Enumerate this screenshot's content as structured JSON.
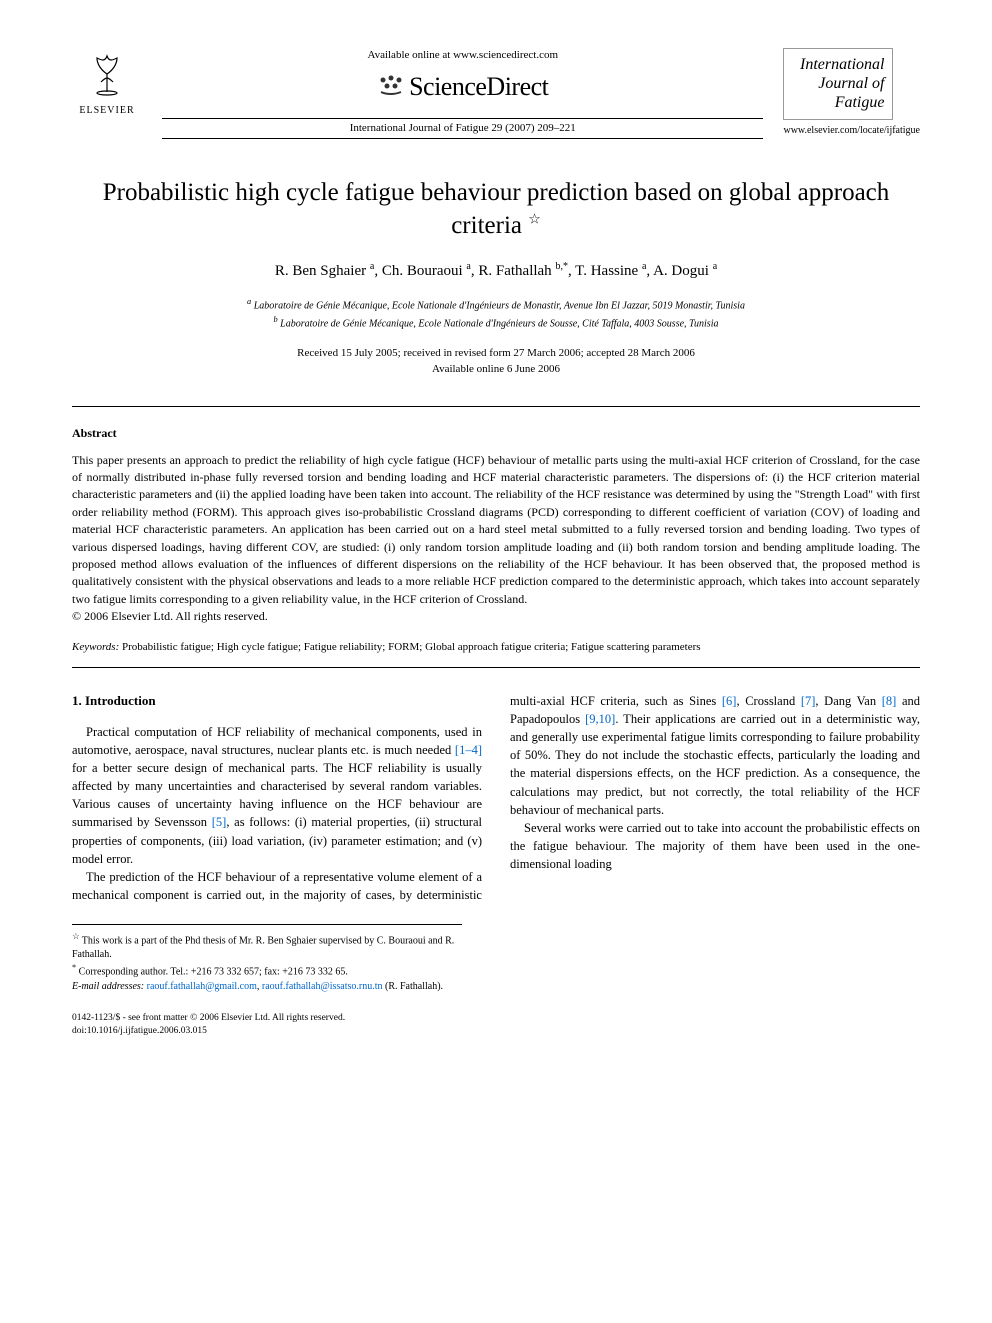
{
  "header": {
    "elsevier_label": "ELSEVIER",
    "available_online": "Available online at www.sciencedirect.com",
    "sciencedirect": "ScienceDirect",
    "journal_ref": "International Journal of Fatigue 29 (2007) 209–221",
    "journal_logo_lines": [
      "International",
      "Journal of",
      "Fatigue"
    ],
    "journal_url": "www.elsevier.com/locate/ijfatigue"
  },
  "title": "Probabilistic high cycle fatigue behaviour prediction based on global approach criteria",
  "title_note_marker": "☆",
  "authors_html": "R. Ben Sghaier <sup>a</sup>, Ch. Bouraoui <sup>a</sup>, R. Fathallah <sup>b,*</sup>, T. Hassine <sup>a</sup>, A. Dogui <sup>a</sup>",
  "affiliations": {
    "a": "Laboratoire de Génie Mécanique, Ecole Nationale d'Ingénieurs de Monastir, Avenue Ibn El Jazzar, 5019 Monastir, Tunisia",
    "b": "Laboratoire de Génie Mécanique, Ecole Nationale d'Ingénieurs de Sousse, Cité Taffala, 4003 Sousse, Tunisia"
  },
  "dates": {
    "received": "Received 15 July 2005; received in revised form 27 March 2006; accepted 28 March 2006",
    "online": "Available online 6 June 2006"
  },
  "abstract": {
    "heading": "Abstract",
    "text": "This paper presents an approach to predict the reliability of high cycle fatigue (HCF) behaviour of metallic parts using the multi-axial HCF criterion of Crossland, for the case of normally distributed in-phase fully reversed torsion and bending loading and HCF material characteristic parameters. The dispersions of: (i) the HCF criterion material characteristic parameters and (ii) the applied loading have been taken into account. The reliability of the HCF resistance was determined by using the \"Strength Load\" with first order reliability method (FORM). This approach gives iso-probabilistic Crossland diagrams (PCD) corresponding to different coefficient of variation (COV) of loading and material HCF characteristic parameters. An application has been carried out on a hard steel metal submitted to a fully reversed torsion and bending loading. Two types of various dispersed loadings, having different COV, are studied: (i) only random torsion amplitude loading and (ii) both random torsion and bending amplitude loading. The proposed method allows evaluation of the influences of different dispersions on the reliability of the HCF behaviour. It has been observed that, the proposed method is qualitatively consistent with the physical observations and leads to a more reliable HCF prediction compared to the deterministic approach, which takes into account separately two fatigue limits corresponding to a given reliability value, in the HCF criterion of Crossland.",
    "copyright": "© 2006 Elsevier Ltd. All rights reserved."
  },
  "keywords": {
    "label": "Keywords:",
    "text": "Probabilistic fatigue; High cycle fatigue; Fatigue reliability; FORM; Global approach fatigue criteria; Fatigue scattering parameters"
  },
  "section1": {
    "heading": "1. Introduction",
    "p1a": "Practical computation of HCF reliability of mechanical components, used in automotive, aerospace, naval structures, nuclear plants etc. is much needed ",
    "ref1": "[1–4]",
    "p1b": " for a better secure design of mechanical parts. The HCF reliability is usually affected by many uncertainties and characterised by several random variables. Various causes of uncertainty having influence on the HCF behaviour are summarised by Sevensson ",
    "ref2": "[5]",
    "p1c": ", as follows: (i) material properties, (ii) struc",
    "p1d": "tural properties of components, (iii) load variation, (iv) parameter estimation; and (v) model error.",
    "p2a": "The prediction of the HCF behaviour of a representative volume element of a mechanical component is carried out, in the majority of cases, by deterministic multi-axial HCF criteria, such as Sines ",
    "ref3": "[6]",
    "p2b": ", Crossland ",
    "ref4": "[7]",
    "p2c": ", Dang Van ",
    "ref5": "[8]",
    "p2d": " and Papadopoulos ",
    "ref6": "[9,10]",
    "p2e": ". Their applications are carried out in a deterministic way, and generally use experimental fatigue limits corresponding to failure probability of 50%. They do not include the stochastic effects, particularly the loading and the material dispersions effects, on the HCF prediction. As a consequence, the calculations may predict, but not correctly, the total reliability of the HCF behaviour of mechanical parts.",
    "p3": "Several works were carried out to take into account the probabilistic effects on the fatigue behaviour. The majority of them have been used in the one-dimensional loading"
  },
  "footnotes": {
    "note_star": "This work is a part of the Phd thesis of Mr. R. Ben Sghaier supervised by C. Bouraoui and R. Fathallah.",
    "corresponding": "Corresponding author. Tel.: +216 73 332 657; fax: +216 73 332 65.",
    "email_label": "E-mail addresses:",
    "email1": "raouf.fathallah@gmail.com",
    "email2": "raouf.fathallah@issatso.rnu.tn",
    "email_suffix": " (R. Fathallah)."
  },
  "footer": {
    "line1": "0142-1123/$ - see front matter © 2006 Elsevier Ltd. All rights reserved.",
    "line2": "doi:10.1016/j.ijfatigue.2006.03.015"
  },
  "colors": {
    "link": "#0066cc",
    "text": "#000000",
    "bg": "#ffffff",
    "rule": "#000000"
  }
}
